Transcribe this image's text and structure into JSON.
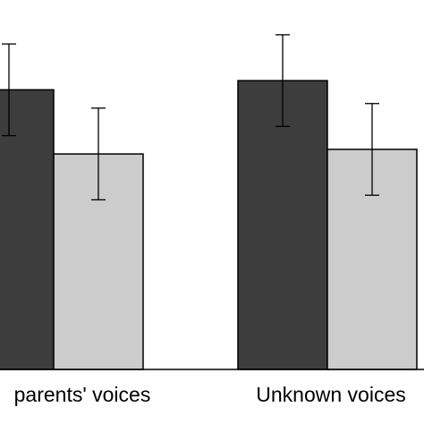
{
  "chart_data": {
    "type": "bar",
    "categories": [
      "parents' voices",
      "Unknown voices"
    ],
    "series": [
      {
        "values": [
          0.61,
          0.63
        ],
        "error": [
          0.1,
          0.1
        ],
        "color": "#3d3d3d"
      },
      {
        "values": [
          0.47,
          0.48
        ],
        "error": [
          0.1,
          0.1
        ],
        "color": "#cccccc"
      }
    ],
    "ylim": [
      0,
      0.8
    ],
    "title": "",
    "xlabel": "",
    "ylabel": "",
    "grid": false
  }
}
